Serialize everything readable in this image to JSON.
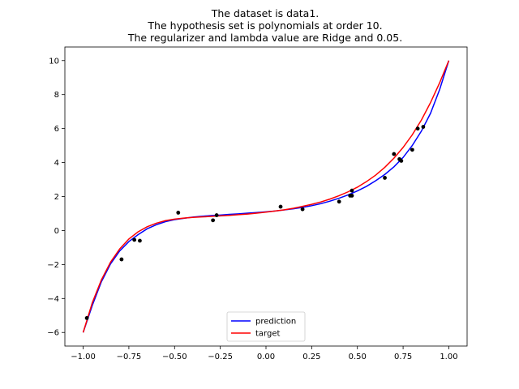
{
  "chart_data": {
    "type": "line",
    "title_lines": [
      "The dataset is data1.",
      "The hypothesis set is polynomials at order 10.",
      "The regularizer and lambda value are Ridge and 0.05."
    ],
    "xlabel": "",
    "ylabel": "",
    "xlim": [
      -1.1,
      1.1
    ],
    "ylim": [
      -6.8,
      10.8
    ],
    "x_ticks": [
      -1.0,
      -0.75,
      -0.5,
      -0.25,
      0.0,
      0.25,
      0.5,
      0.75,
      1.0
    ],
    "x_tick_labels": [
      "−1.00",
      "−0.75",
      "−0.50",
      "−0.25",
      "0.00",
      "0.25",
      "0.50",
      "0.75",
      "1.00"
    ],
    "y_ticks": [
      -6,
      -4,
      -2,
      0,
      2,
      4,
      6,
      8,
      10
    ],
    "y_tick_labels": [
      "−6",
      "−4",
      "−2",
      "0",
      "2",
      "4",
      "6",
      "8",
      "10"
    ],
    "grid": false,
    "legend_position": "bottom-center",
    "points": {
      "color": "#000000",
      "x": [
        -0.98,
        -0.79,
        -0.72,
        -0.69,
        -0.48,
        -0.29,
        -0.27,
        0.08,
        0.2,
        0.4,
        0.46,
        0.47,
        0.47,
        0.65,
        0.7,
        0.73,
        0.74,
        0.8,
        0.83,
        0.86
      ],
      "y": [
        -5.15,
        -1.7,
        -0.55,
        -0.6,
        1.05,
        0.6,
        0.9,
        1.4,
        1.25,
        1.7,
        2.05,
        2.05,
        2.35,
        3.1,
        4.5,
        4.2,
        4.1,
        4.75,
        6.0,
        6.1
      ]
    },
    "series": [
      {
        "name": "prediction",
        "color": "#0000ff",
        "x": [
          -1.0,
          -0.95,
          -0.9,
          -0.85,
          -0.8,
          -0.75,
          -0.7,
          -0.65,
          -0.6,
          -0.55,
          -0.5,
          -0.45,
          -0.4,
          -0.35,
          -0.3,
          -0.25,
          -0.2,
          -0.15,
          -0.1,
          -0.05,
          0.0,
          0.05,
          0.1,
          0.15,
          0.2,
          0.25,
          0.3,
          0.35,
          0.4,
          0.45,
          0.5,
          0.55,
          0.6,
          0.65,
          0.7,
          0.75,
          0.8,
          0.85,
          0.9,
          0.95,
          1.0
        ],
        "y": [
          -6.0,
          -4.41,
          -3.01,
          -1.96,
          -1.2,
          -0.65,
          -0.25,
          0.1,
          0.34,
          0.52,
          0.64,
          0.72,
          0.79,
          0.84,
          0.88,
          0.91,
          0.95,
          0.98,
          1.02,
          1.06,
          1.1,
          1.15,
          1.21,
          1.28,
          1.36,
          1.46,
          1.58,
          1.73,
          1.9,
          2.1,
          2.33,
          2.6,
          2.93,
          3.3,
          3.75,
          4.3,
          5.0,
          5.85,
          6.9,
          8.3,
          10.0
        ]
      },
      {
        "name": "target",
        "color": "#ff0000",
        "x": [
          -1.0,
          -0.95,
          -0.9,
          -0.85,
          -0.8,
          -0.75,
          -0.7,
          -0.65,
          -0.6,
          -0.55,
          -0.5,
          -0.45,
          -0.4,
          -0.35,
          -0.3,
          -0.25,
          -0.2,
          -0.15,
          -0.1,
          -0.05,
          0.0,
          0.05,
          0.1,
          0.15,
          0.2,
          0.25,
          0.3,
          0.35,
          0.4,
          0.45,
          0.5,
          0.55,
          0.6,
          0.65,
          0.7,
          0.75,
          0.8,
          0.85,
          0.9,
          0.95,
          1.0
        ],
        "y": [
          -6.0,
          -4.25,
          -2.9,
          -1.86,
          -1.08,
          -0.5,
          -0.08,
          0.22,
          0.43,
          0.58,
          0.67,
          0.73,
          0.77,
          0.8,
          0.83,
          0.86,
          0.89,
          0.93,
          0.97,
          1.02,
          1.08,
          1.15,
          1.22,
          1.31,
          1.42,
          1.54,
          1.68,
          1.85,
          2.05,
          2.28,
          2.55,
          2.88,
          3.26,
          3.72,
          4.26,
          4.89,
          5.63,
          6.5,
          7.53,
          8.7,
          10.0
        ]
      }
    ]
  }
}
